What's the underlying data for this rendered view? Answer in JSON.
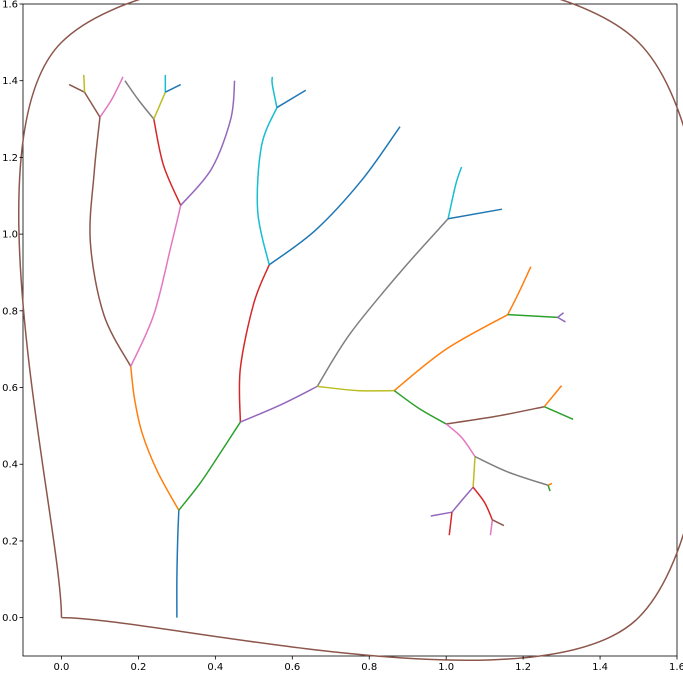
{
  "chart_data": {
    "type": "line",
    "title": "",
    "xlabel": "",
    "ylabel": "",
    "xlim": [
      -0.1,
      1.6
    ],
    "ylim": [
      -0.1,
      1.6
    ],
    "grid": false,
    "xticks": [
      "0.0",
      "0.2",
      "0.4",
      "0.6",
      "0.8",
      "1.0",
      "1.2",
      "1.4",
      "1.6"
    ],
    "yticks": [
      "0.0",
      "0.2",
      "0.4",
      "0.6",
      "0.8",
      "1.0",
      "1.2",
      "1.4",
      "1.6"
    ],
    "colors": {
      "C0": "#1f77b4",
      "C1": "#ff7f0e",
      "C2": "#2ca02c",
      "C3": "#d62728",
      "C4": "#9467bd",
      "C5": "#8c564b",
      "C6": "#e377c2",
      "C7": "#7f7f7f",
      "C8": "#bcbd22",
      "C9": "#17becf"
    },
    "series": [
      {
        "color": "C5",
        "values": [
          [
            0,
            0
          ],
          [
            1.5,
            0
          ],
          [
            1.5,
            1.5
          ],
          [
            0,
            1.5
          ],
          [
            0,
            0
          ]
        ]
      },
      {
        "color": "C0",
        "values": [
          [
            0.3,
            0
          ],
          [
            0.3,
            0.1
          ],
          [
            0.302,
            0.2
          ],
          [
            0.305,
            0.28
          ]
        ]
      },
      {
        "color": "C1",
        "values": [
          [
            0.305,
            0.28
          ],
          [
            0.25,
            0.38
          ],
          [
            0.21,
            0.48
          ],
          [
            0.19,
            0.57
          ],
          [
            0.18,
            0.655
          ]
        ]
      },
      {
        "color": "C2",
        "values": [
          [
            0.305,
            0.28
          ],
          [
            0.36,
            0.35
          ],
          [
            0.41,
            0.425
          ],
          [
            0.465,
            0.51
          ]
        ]
      },
      {
        "color": "C5",
        "values": [
          [
            0.18,
            0.655
          ],
          [
            0.11,
            0.79
          ],
          [
            0.075,
            0.98
          ],
          [
            0.085,
            1.16
          ],
          [
            0.1,
            1.305
          ]
        ]
      },
      {
        "color": "C6",
        "values": [
          [
            0.18,
            0.655
          ],
          [
            0.24,
            0.79
          ],
          [
            0.285,
            0.97
          ],
          [
            0.31,
            1.075
          ]
        ]
      },
      {
        "color": "C3",
        "values": [
          [
            0.31,
            1.075
          ],
          [
            0.265,
            1.18
          ],
          [
            0.24,
            1.3
          ]
        ]
      },
      {
        "color": "C4",
        "values": [
          [
            0.31,
            1.075
          ],
          [
            0.39,
            1.17
          ],
          [
            0.44,
            1.3
          ],
          [
            0.45,
            1.4
          ]
        ]
      },
      {
        "color": "C6",
        "values": [
          [
            0.1,
            1.305
          ],
          [
            0.13,
            1.35
          ],
          [
            0.16,
            1.41
          ]
        ]
      },
      {
        "color": "C5",
        "values": [
          [
            0.1,
            1.305
          ],
          [
            0.06,
            1.37
          ]
        ]
      },
      {
        "color": "C5",
        "values": [
          [
            0.06,
            1.37
          ],
          [
            0.02,
            1.39
          ]
        ]
      },
      {
        "color": "C8",
        "values": [
          [
            0.06,
            1.37
          ],
          [
            0.058,
            1.415
          ]
        ]
      },
      {
        "color": "C7",
        "values": [
          [
            0.24,
            1.3
          ],
          [
            0.2,
            1.35
          ],
          [
            0.165,
            1.4
          ]
        ]
      },
      {
        "color": "C8",
        "values": [
          [
            0.24,
            1.3
          ],
          [
            0.27,
            1.37
          ]
        ]
      },
      {
        "color": "C9",
        "values": [
          [
            0.27,
            1.37
          ],
          [
            0.27,
            1.415
          ]
        ]
      },
      {
        "color": "C0",
        "values": [
          [
            0.27,
            1.37
          ],
          [
            0.31,
            1.39
          ]
        ]
      },
      {
        "color": "C3",
        "values": [
          [
            0.465,
            0.51
          ],
          [
            0.465,
            0.65
          ],
          [
            0.5,
            0.82
          ],
          [
            0.54,
            0.92
          ]
        ]
      },
      {
        "color": "C4",
        "values": [
          [
            0.465,
            0.51
          ],
          [
            0.57,
            0.555
          ],
          [
            0.665,
            0.603
          ]
        ]
      },
      {
        "color": "C9",
        "values": [
          [
            0.54,
            0.92
          ],
          [
            0.51,
            1.06
          ],
          [
            0.52,
            1.23
          ],
          [
            0.56,
            1.33
          ]
        ]
      },
      {
        "color": "C0",
        "values": [
          [
            0.54,
            0.92
          ],
          [
            0.66,
            1.01
          ],
          [
            0.78,
            1.14
          ],
          [
            0.88,
            1.28
          ]
        ]
      },
      {
        "color": "C9",
        "values": [
          [
            0.56,
            1.33
          ],
          [
            0.548,
            1.39
          ],
          [
            0.548,
            1.41
          ]
        ]
      },
      {
        "color": "C0",
        "values": [
          [
            0.56,
            1.33
          ],
          [
            0.635,
            1.375
          ]
        ]
      },
      {
        "color": "C7",
        "values": [
          [
            0.665,
            0.603
          ],
          [
            0.75,
            0.74
          ],
          [
            0.88,
            0.9
          ],
          [
            1.005,
            1.04
          ]
        ]
      },
      {
        "color": "C8",
        "values": [
          [
            0.665,
            0.603
          ],
          [
            0.77,
            0.592
          ],
          [
            0.865,
            0.592
          ]
        ]
      },
      {
        "color": "C9",
        "values": [
          [
            1.005,
            1.04
          ],
          [
            1.025,
            1.13
          ],
          [
            1.04,
            1.175
          ]
        ]
      },
      {
        "color": "C0",
        "values": [
          [
            1.005,
            1.04
          ],
          [
            1.145,
            1.065
          ]
        ]
      },
      {
        "color": "C1",
        "values": [
          [
            0.865,
            0.592
          ],
          [
            1.0,
            0.7
          ],
          [
            1.16,
            0.79
          ]
        ]
      },
      {
        "color": "C2",
        "values": [
          [
            0.865,
            0.592
          ],
          [
            0.93,
            0.545
          ],
          [
            1.0,
            0.505
          ]
        ]
      },
      {
        "color": "C1",
        "values": [
          [
            1.16,
            0.79
          ],
          [
            1.19,
            0.85
          ],
          [
            1.22,
            0.915
          ]
        ]
      },
      {
        "color": "C2",
        "values": [
          [
            1.16,
            0.79
          ],
          [
            1.29,
            0.783
          ]
        ]
      },
      {
        "color": "C4",
        "values": [
          [
            1.29,
            0.783
          ],
          [
            1.305,
            0.795
          ]
        ]
      },
      {
        "color": "C4",
        "values": [
          [
            1.29,
            0.783
          ],
          [
            1.31,
            0.771
          ]
        ]
      },
      {
        "color": "C5",
        "values": [
          [
            1.0,
            0.505
          ],
          [
            1.13,
            0.525
          ],
          [
            1.255,
            0.55
          ]
        ]
      },
      {
        "color": "C1",
        "values": [
          [
            1.255,
            0.55
          ],
          [
            1.3,
            0.605
          ]
        ]
      },
      {
        "color": "C2",
        "values": [
          [
            1.255,
            0.55
          ],
          [
            1.33,
            0.517
          ]
        ]
      },
      {
        "color": "C6",
        "values": [
          [
            1.0,
            0.505
          ],
          [
            1.04,
            0.47
          ],
          [
            1.075,
            0.42
          ]
        ]
      },
      {
        "color": "C8",
        "values": [
          [
            1.075,
            0.42
          ],
          [
            1.07,
            0.34
          ]
        ]
      },
      {
        "color": "C7",
        "values": [
          [
            1.075,
            0.42
          ],
          [
            1.16,
            0.38
          ],
          [
            1.265,
            0.345
          ]
        ]
      },
      {
        "color": "C1",
        "values": [
          [
            1.265,
            0.345
          ],
          [
            1.275,
            0.35
          ]
        ]
      },
      {
        "color": "C2",
        "values": [
          [
            1.265,
            0.345
          ],
          [
            1.27,
            0.33
          ]
        ]
      },
      {
        "color": "C4",
        "values": [
          [
            1.07,
            0.34
          ],
          [
            1.04,
            0.305
          ],
          [
            1.015,
            0.275
          ]
        ]
      },
      {
        "color": "C3",
        "values": [
          [
            1.07,
            0.34
          ],
          [
            1.1,
            0.3
          ],
          [
            1.12,
            0.255
          ]
        ]
      },
      {
        "color": "C4",
        "values": [
          [
            1.015,
            0.275
          ],
          [
            0.96,
            0.265
          ]
        ]
      },
      {
        "color": "C3",
        "values": [
          [
            1.015,
            0.275
          ],
          [
            1.008,
            0.215
          ]
        ]
      },
      {
        "color": "C6",
        "values": [
          [
            1.12,
            0.255
          ],
          [
            1.115,
            0.215
          ]
        ]
      },
      {
        "color": "C5",
        "values": [
          [
            1.12,
            0.255
          ],
          [
            1.15,
            0.24
          ]
        ]
      }
    ]
  }
}
